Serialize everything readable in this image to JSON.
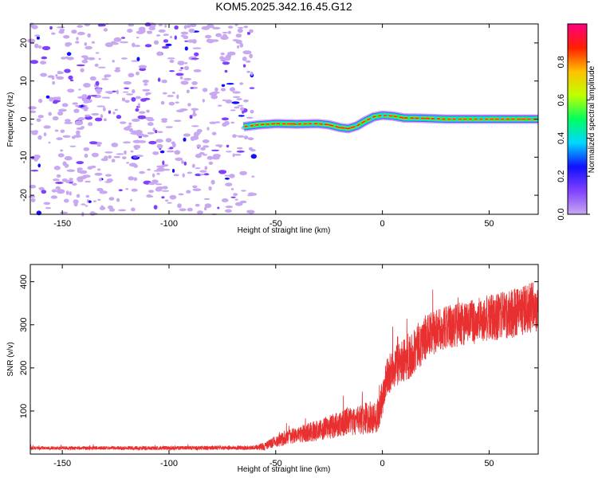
{
  "figure": {
    "title": "KOM5.2025.342.16.45.G12"
  },
  "chart_data": [
    {
      "type": "heatmap",
      "xlabel": "Height of straight line (km)",
      "ylabel": "Frequency (Hz)",
      "xlim": [
        -165,
        73
      ],
      "ylim": [
        -25,
        25
      ],
      "xticks": [
        -150,
        -100,
        -50,
        0,
        50
      ],
      "yticks": [
        -20,
        -10,
        0,
        10,
        20
      ],
      "noise_region_x": [
        -165,
        -60
      ],
      "signal_track": {
        "x": [
          -65,
          -58,
          -50,
          -40,
          -30,
          -25,
          -20,
          -16,
          -12,
          -8,
          -4,
          0,
          5,
          10,
          20,
          25,
          30,
          40,
          50,
          60,
          73
        ],
        "y": [
          -2,
          -1.5,
          -1.2,
          -1.3,
          -1.2,
          -1.5,
          -2.2,
          -2.5,
          -1.8,
          -0.5,
          0.6,
          1.0,
          0.8,
          0.3,
          0.2,
          0.1,
          0.0,
          0.0,
          0.0,
          0.0,
          0.0
        ]
      },
      "colorbar": {
        "label": "Normalized spectral amplitude",
        "range": [
          0.0,
          1.0
        ],
        "ticks": [
          "0.0",
          "0.2",
          "0.4",
          "0.6",
          "0.8"
        ],
        "tick_values": [
          0.0,
          0.2,
          0.4,
          0.6,
          0.8
        ]
      },
      "colormap": [
        "#ffffff",
        "#c8a8f0",
        "#8040ff",
        "#1010ff",
        "#00d8ff",
        "#00ff60",
        "#c0ff00",
        "#ffc000",
        "#ff2000",
        "#ff0080"
      ]
    },
    {
      "type": "line",
      "xlabel": "Height of straight line (km)",
      "ylabel": "SNR (v/v)",
      "xlim": [
        -165,
        73
      ],
      "ylim": [
        0,
        440
      ],
      "xticks": [
        -150,
        -100,
        -50,
        0,
        50
      ],
      "yticks": [
        100,
        200,
        300,
        400
      ],
      "color": "#e83030",
      "trend": {
        "x": [
          -165,
          -100,
          -60,
          -55,
          -50,
          -40,
          -30,
          -20,
          -10,
          -2,
          0,
          2,
          5,
          10,
          15,
          20,
          30,
          40,
          50,
          60,
          73
        ],
        "y": [
          14,
          14,
          15,
          18,
          30,
          45,
          55,
          70,
          80,
          90,
          130,
          175,
          200,
          215,
          240,
          270,
          295,
          305,
          315,
          325,
          345
        ]
      },
      "noise_amplitude": {
        "x": [
          -165,
          -60,
          -50,
          -20,
          -2,
          2,
          15,
          30,
          73
        ],
        "y": [
          4,
          5,
          14,
          30,
          40,
          45,
          55,
          50,
          60
        ]
      }
    }
  ]
}
